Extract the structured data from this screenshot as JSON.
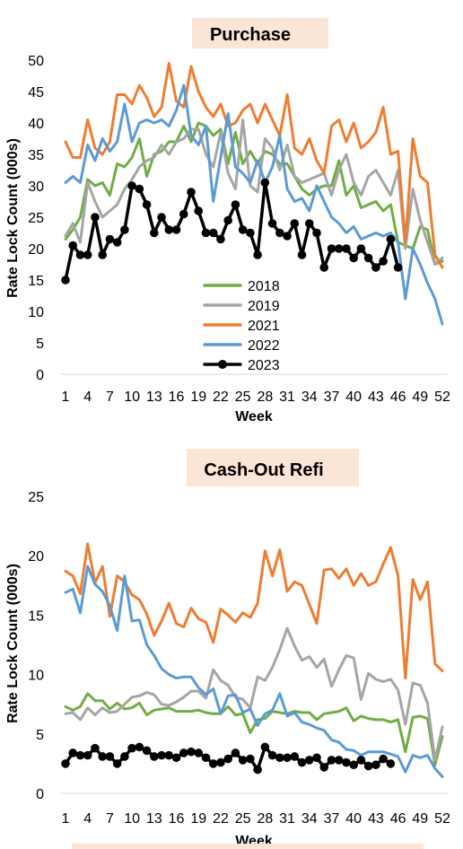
{
  "chart_data": [
    {
      "type": "line",
      "title": "Purchase",
      "xlabel": "Week",
      "ylabel": "Rate Lock Count (000s)",
      "ylim": [
        0,
        50
      ],
      "yticks": [
        0,
        5,
        10,
        15,
        20,
        25,
        30,
        35,
        40,
        45,
        50
      ],
      "xticks": [
        "1",
        "4",
        "7",
        "10",
        "13",
        "16",
        "19",
        "22",
        "25",
        "28",
        "31",
        "34",
        "37",
        "40",
        "43",
        "46",
        "49",
        "52"
      ],
      "grid": false,
      "legend": "center",
      "series": [
        {
          "name": "2018",
          "color": "#70ad47",
          "marker": false,
          "values": [
            21.5,
            23,
            25,
            31,
            30,
            30.5,
            28.5,
            33.5,
            33,
            34.5,
            37.5,
            31.5,
            35,
            35.5,
            37,
            37,
            39.5,
            37,
            40,
            39.5,
            38,
            39,
            33.5,
            38.5,
            33.5,
            35.5,
            33.5,
            35.5,
            35,
            33.5,
            33.5,
            31.5,
            29.5,
            28.5,
            29.5,
            30,
            30,
            34,
            28.5,
            30,
            26.5,
            27,
            27.5,
            26,
            27,
            21,
            20.5,
            20,
            23.5,
            23,
            17.5,
            18
          ]
        },
        {
          "name": "2019",
          "color": "#a5a5a5",
          "marker": false,
          "values": [
            22,
            24,
            21,
            30.5,
            27.5,
            25,
            26,
            27,
            29.5,
            31,
            33,
            34,
            34.5,
            36.5,
            35,
            37,
            37.5,
            39,
            39,
            35,
            33,
            38.5,
            32,
            29.5,
            40.5,
            30,
            29,
            37.5,
            36,
            32.5,
            36.5,
            31.5,
            30.5,
            31,
            31.5,
            32,
            28.5,
            32.5,
            35,
            30.5,
            28.5,
            31.5,
            32.5,
            30.5,
            28.5,
            32.5,
            20,
            29.5,
            24.5,
            21,
            17.5,
            18.5
          ]
        },
        {
          "name": "2021",
          "color": "#ed7d31",
          "marker": false,
          "values": [
            37,
            34.5,
            34.5,
            40.5,
            36,
            35,
            37,
            44.5,
            44.5,
            43,
            46,
            44,
            41,
            42.5,
            49.5,
            43.5,
            42.5,
            49,
            45,
            42.5,
            41,
            43,
            39.5,
            40,
            42,
            43,
            40,
            43,
            40.5,
            38,
            44.5,
            36,
            35,
            37.5,
            34,
            32,
            39.5,
            40.5,
            37,
            40,
            36,
            37,
            38.5,
            42.5,
            35,
            35.5,
            21,
            37.5,
            31.5,
            30.5,
            19,
            17
          ]
        },
        {
          "name": "2022",
          "color": "#5b9bd5",
          "marker": false,
          "values": [
            30.5,
            31.5,
            30.5,
            36.5,
            34,
            37.5,
            35.5,
            37,
            43,
            37,
            40,
            40.5,
            40,
            40.5,
            39.5,
            42,
            46,
            38,
            36.5,
            39.5,
            27.5,
            34.5,
            41.5,
            33,
            32,
            30.5,
            34,
            30.5,
            33,
            38,
            29.5,
            27.5,
            28,
            26,
            30,
            27.5,
            25,
            24,
            22.5,
            23.5,
            21.5,
            22,
            22.5,
            22,
            22.5,
            21,
            12,
            20,
            17.5,
            14.5,
            12,
            8
          ]
        },
        {
          "name": "2023",
          "color": "#000000",
          "marker": true,
          "values": [
            15,
            20.5,
            19,
            19,
            25,
            19,
            21.5,
            21,
            23,
            30,
            29.5,
            27,
            22.5,
            25,
            23,
            23,
            25.5,
            29,
            26,
            22.5,
            22.5,
            21.5,
            24.5,
            27,
            23,
            22.5,
            19,
            30.5,
            24,
            22.5,
            22,
            24,
            19,
            24,
            22.5,
            17,
            20,
            20,
            20,
            18.5,
            20,
            18.5,
            17,
            18,
            21.5,
            17
          ]
        }
      ]
    },
    {
      "type": "line",
      "title": "Cash-Out Refi",
      "xlabel": "Week",
      "ylabel": "Rate Lock Count (000s)",
      "ylim": [
        0,
        25
      ],
      "yticks": [
        0,
        5,
        10,
        15,
        20,
        25
      ],
      "xticks": [
        "1",
        "4",
        "7",
        "10",
        "13",
        "16",
        "19",
        "22",
        "25",
        "28",
        "31",
        "34",
        "37",
        "40",
        "43",
        "46",
        "49",
        "52"
      ],
      "grid": false,
      "series": [
        {
          "name": "2018",
          "color": "#70ad47",
          "marker": false,
          "values": [
            7.3,
            7,
            7.3,
            8.4,
            7.8,
            7.8,
            7.1,
            7.6,
            7.1,
            7.2,
            7.6,
            6.6,
            7,
            7.1,
            7.2,
            6.9,
            6.9,
            6.9,
            7,
            6.8,
            6.7,
            6.7,
            7.3,
            6.6,
            6.7,
            5.1,
            6.2,
            6.3,
            6.9,
            6.8,
            6.7,
            6.9,
            6.8,
            6.8,
            6.2,
            6.7,
            6.8,
            6.9,
            7.2,
            6.1,
            6.5,
            6.3,
            6.2,
            6.2,
            6,
            6.2,
            3.5,
            6.4,
            6.5,
            6.3,
            2.4,
            4.8
          ]
        },
        {
          "name": "2019",
          "color": "#a5a5a5",
          "marker": false,
          "values": [
            6.7,
            6.8,
            6.2,
            7.2,
            6.6,
            7.2,
            6.8,
            6.9,
            7.5,
            8.1,
            8.2,
            8.5,
            8.3,
            7.5,
            7.4,
            7.7,
            8.1,
            8.6,
            8.6,
            8,
            10.4,
            9.5,
            9.1,
            8.1,
            7.9,
            7.2,
            9.8,
            9.5,
            10.6,
            12.1,
            13.9,
            12.4,
            11.2,
            11.5,
            10.6,
            11.3,
            9,
            10.4,
            11.6,
            11.4,
            7.9,
            10.1,
            9.6,
            9.4,
            9.6,
            8.7,
            5.8,
            9.3,
            9.1,
            7.6,
            2.8,
            5.6
          ]
        },
        {
          "name": "2021",
          "color": "#ed7d31",
          "marker": false,
          "values": [
            18.7,
            18.3,
            16.8,
            21,
            17.7,
            19.1,
            14.9,
            18.3,
            17.8,
            16.7,
            16.3,
            15.1,
            13.3,
            14.5,
            16,
            14.3,
            14,
            15.6,
            14.7,
            14.4,
            12.7,
            15.5,
            15,
            14.4,
            15.2,
            14.8,
            16,
            20.4,
            18.3,
            20.5,
            17,
            17.8,
            17.5,
            15.9,
            14.3,
            18.8,
            18.9,
            18.1,
            18.9,
            17.5,
            18.5,
            17.5,
            17.8,
            19.3,
            20.7,
            18.3,
            9.7,
            18,
            16.3,
            17.8,
            10.9,
            10.3
          ]
        },
        {
          "name": "2022",
          "color": "#5b9bd5",
          "marker": false,
          "values": [
            16.9,
            17.2,
            15.2,
            19.1,
            17.6,
            17,
            15.8,
            13.7,
            18.3,
            14.5,
            14.6,
            12.5,
            11.6,
            10.5,
            10,
            9.7,
            9.8,
            9.8,
            8.9,
            8.3,
            8.8,
            6.7,
            8.2,
            8.3,
            6.8,
            7.1,
            5.7,
            6.7,
            7,
            8.4,
            6.5,
            6.8,
            6,
            5.8,
            5.5,
            5.3,
            4.5,
            4.3,
            3.7,
            3.6,
            3.2,
            3.5,
            3.5,
            3.5,
            3.3,
            3.1,
            1.8,
            3.2,
            3,
            3.2,
            2.1,
            1.4
          ]
        },
        {
          "name": "2023",
          "color": "#000000",
          "marker": true,
          "values": [
            2.5,
            3.4,
            3.2,
            3.2,
            3.8,
            3.1,
            3.1,
            2.5,
            3.1,
            3.8,
            3.9,
            3.6,
            3.1,
            3.2,
            3.2,
            3,
            3.4,
            3.5,
            3.4,
            3,
            2.5,
            2.6,
            2.9,
            3.4,
            2.8,
            2.9,
            2,
            3.9,
            3.2,
            3,
            3,
            3.1,
            2.6,
            2.8,
            3,
            2.2,
            2.8,
            2.8,
            2.6,
            2.4,
            2.8,
            2.3,
            2.4,
            2.9,
            2.5
          ]
        }
      ]
    }
  ]
}
